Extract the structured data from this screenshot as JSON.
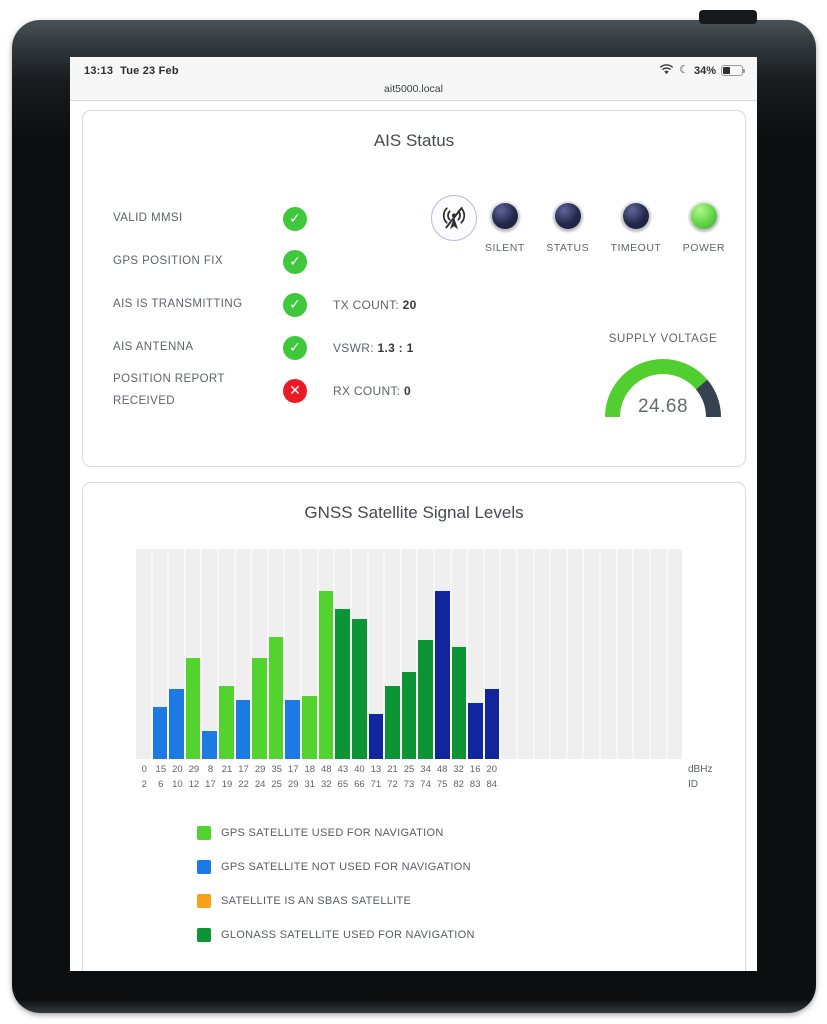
{
  "device": {
    "time": "13:13",
    "date": "Tue 23 Feb",
    "battery_percent": "34%",
    "moon_glyph": "☾"
  },
  "browser": {
    "address": "ait5000.local"
  },
  "ais_status": {
    "title": "AIS Status",
    "rows": [
      {
        "label": "VALID MMSI",
        "status": "ok",
        "value_label": "",
        "value": ""
      },
      {
        "label": "GPS POSITION FIX",
        "status": "ok",
        "value_label": "",
        "value": ""
      },
      {
        "label": "AIS IS TRANSMITTING",
        "status": "ok",
        "value_label": "TX COUNT:",
        "value": "20"
      },
      {
        "label": "AIS ANTENNA",
        "status": "ok",
        "value_label": "VSWR:",
        "value": "1.3 : 1"
      },
      {
        "label": "POSITION REPORT RECEIVED",
        "status": "error",
        "value_label": "RX COUNT:",
        "value": "0"
      }
    ],
    "check_glyph": "✓",
    "cross_glyph": "✕",
    "leds": [
      {
        "label": "SILENT",
        "on": false
      },
      {
        "label": "STATUS",
        "on": false
      },
      {
        "label": "TIMEOUT",
        "on": false
      },
      {
        "label": "POWER",
        "on": true
      }
    ],
    "gauge": {
      "title": "SUPPLY VOLTAGE",
      "value": "24.68",
      "fill_ratio": 0.78
    },
    "colors": {
      "ok": "#3fc83c",
      "error": "#ea1b23",
      "led_off": "#23284a",
      "led_on": "#5ed544",
      "gauge_fill": "#52cf30",
      "gauge_rest": "#36424f"
    }
  },
  "gnss": {
    "title": "GNSS Satellite Signal Levels"
  },
  "chart_data": {
    "type": "bar",
    "title": "GNSS Satellite Signal Levels",
    "ylabel_unit": "dBHz",
    "xlabel_unit": "ID",
    "ylim": [
      0,
      60
    ],
    "grid": true,
    "total_slots": 33,
    "satellites": [
      {
        "id": 2,
        "dbhz": 0,
        "category": "gps_not_used"
      },
      {
        "id": 6,
        "dbhz": 15,
        "category": "gps_not_used"
      },
      {
        "id": 10,
        "dbhz": 20,
        "category": "gps_not_used"
      },
      {
        "id": 12,
        "dbhz": 29,
        "category": "gps_used"
      },
      {
        "id": 17,
        "dbhz": 8,
        "category": "gps_not_used"
      },
      {
        "id": 19,
        "dbhz": 21,
        "category": "gps_used"
      },
      {
        "id": 22,
        "dbhz": 17,
        "category": "gps_not_used"
      },
      {
        "id": 24,
        "dbhz": 29,
        "category": "gps_used"
      },
      {
        "id": 25,
        "dbhz": 35,
        "category": "gps_used"
      },
      {
        "id": 29,
        "dbhz": 17,
        "category": "gps_not_used"
      },
      {
        "id": 31,
        "dbhz": 18,
        "category": "gps_used"
      },
      {
        "id": 32,
        "dbhz": 48,
        "category": "gps_used"
      },
      {
        "id": 65,
        "dbhz": 43,
        "category": "glonass_used"
      },
      {
        "id": 66,
        "dbhz": 40,
        "category": "glonass_used"
      },
      {
        "id": 71,
        "dbhz": 13,
        "category": "glonass_not_used"
      },
      {
        "id": 72,
        "dbhz": 21,
        "category": "glonass_used"
      },
      {
        "id": 73,
        "dbhz": 25,
        "category": "glonass_used"
      },
      {
        "id": 74,
        "dbhz": 34,
        "category": "glonass_used"
      },
      {
        "id": 75,
        "dbhz": 48,
        "category": "glonass_not_used"
      },
      {
        "id": 82,
        "dbhz": 32,
        "category": "glonass_used"
      },
      {
        "id": 83,
        "dbhz": 16,
        "category": "glonass_not_used"
      },
      {
        "id": 84,
        "dbhz": 20,
        "category": "glonass_not_used"
      }
    ],
    "colors": {
      "gps_used": "#52d32e",
      "gps_not_used": "#1b7ae3",
      "sbas": "#f8a01c",
      "glonass_used": "#0d9434",
      "glonass_not_used": "#11259c"
    },
    "legend": [
      {
        "category": "gps_used",
        "label": "GPS SATELLITE USED FOR NAVIGATION"
      },
      {
        "category": "gps_not_used",
        "label": "GPS SATELLITE NOT USED FOR NAVIGATION"
      },
      {
        "category": "sbas",
        "label": "SATELLITE IS AN SBAS SATELLITE"
      },
      {
        "category": "glonass_used",
        "label": "GLONASS SATELLITE USED FOR NAVIGATION"
      }
    ]
  }
}
